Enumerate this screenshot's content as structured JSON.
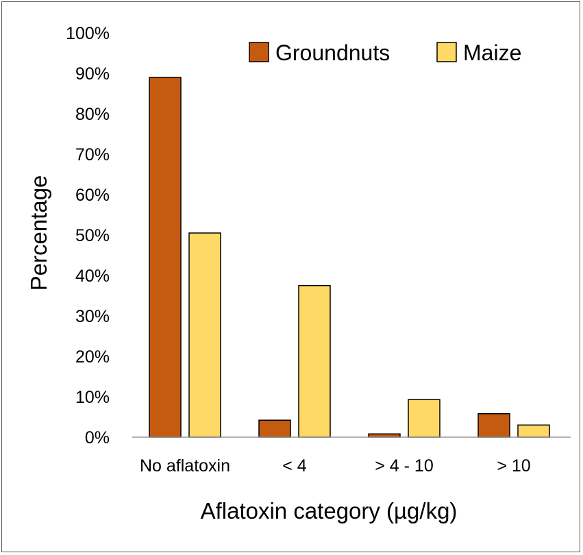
{
  "chart_data": {
    "type": "bar",
    "title": "",
    "xlabel": "Aflatoxin category (µg/kg)",
    "ylabel": "Percentage",
    "categories": [
      "No aflatoxin",
      "< 4",
      "> 4 - 10",
      "> 10"
    ],
    "series": [
      {
        "name": "Groundnuts",
        "color": "#C55A11",
        "values": [
          89,
          4.2,
          0.8,
          5.8
        ]
      },
      {
        "name": "Maize",
        "color": "#FFD966",
        "values": [
          50.5,
          37.5,
          9.3,
          3.0
        ]
      }
    ],
    "ylim": [
      0,
      100
    ],
    "yticks": [
      "0%",
      "10%",
      "20%",
      "30%",
      "40%",
      "50%",
      "60%",
      "70%",
      "80%",
      "90%",
      "100%"
    ],
    "legend_position": "top-right",
    "grid": false
  }
}
